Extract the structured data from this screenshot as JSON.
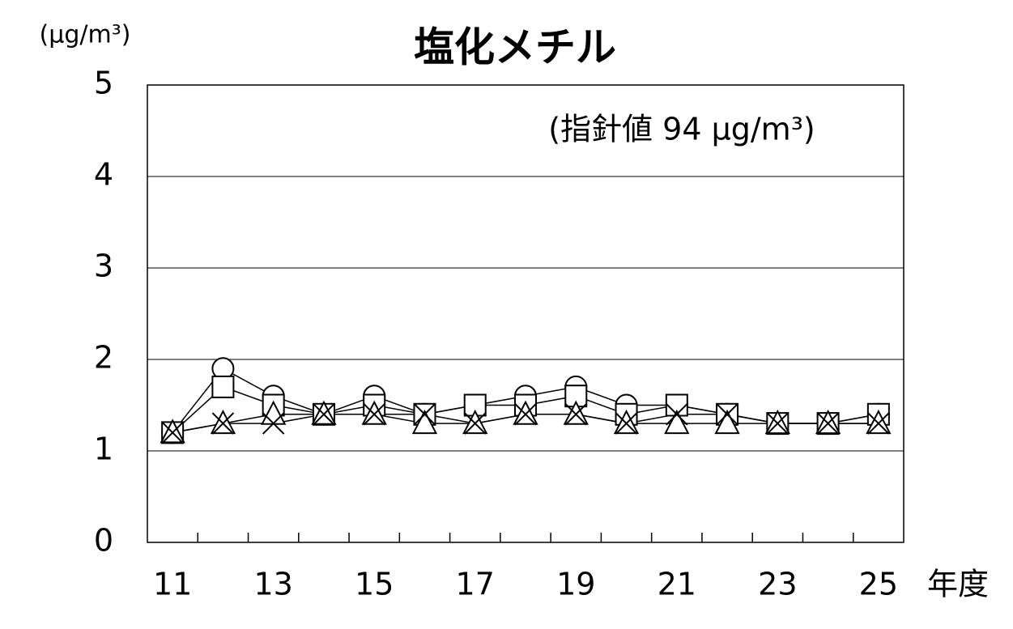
{
  "chart_data": {
    "type": "line",
    "title": "塩化メチル",
    "y_unit": "(μg/m³)",
    "annotation": "(指針値 94 μg/m³)",
    "x_label": "年度",
    "categories": [
      "11",
      null,
      "13",
      null,
      "15",
      null,
      "17",
      null,
      "19",
      null,
      "21",
      null,
      "23",
      null,
      "25"
    ],
    "series": [
      {
        "marker": "circle",
        "color": "#000000",
        "values": [
          1.2,
          1.9,
          1.6,
          1.4,
          1.6,
          1.4,
          1.5,
          1.6,
          1.7,
          1.5,
          1.5,
          1.4,
          1.3,
          1.3,
          1.4
        ]
      },
      {
        "marker": "square",
        "color": "#000000",
        "values": [
          1.2,
          1.7,
          1.5,
          1.4,
          1.5,
          1.4,
          1.5,
          1.5,
          1.6,
          1.4,
          1.5,
          1.4,
          1.3,
          1.3,
          1.4
        ]
      },
      {
        "marker": "triangle",
        "color": "#000000",
        "values": [
          1.2,
          1.3,
          1.4,
          1.4,
          1.4,
          1.3,
          1.3,
          1.4,
          1.4,
          1.3,
          1.3,
          1.3,
          1.3,
          1.3,
          1.3
        ]
      },
      {
        "marker": "x",
        "color": "#000000",
        "values": [
          1.2,
          1.3,
          1.3,
          1.4,
          1.4,
          1.4,
          1.3,
          1.4,
          1.4,
          1.3,
          1.4,
          1.4,
          1.3,
          1.3,
          1.3
        ]
      }
    ],
    "ylim": [
      0,
      5
    ],
    "yticks": [
      0,
      1,
      2,
      3,
      4,
      5
    ],
    "grid": true
  }
}
